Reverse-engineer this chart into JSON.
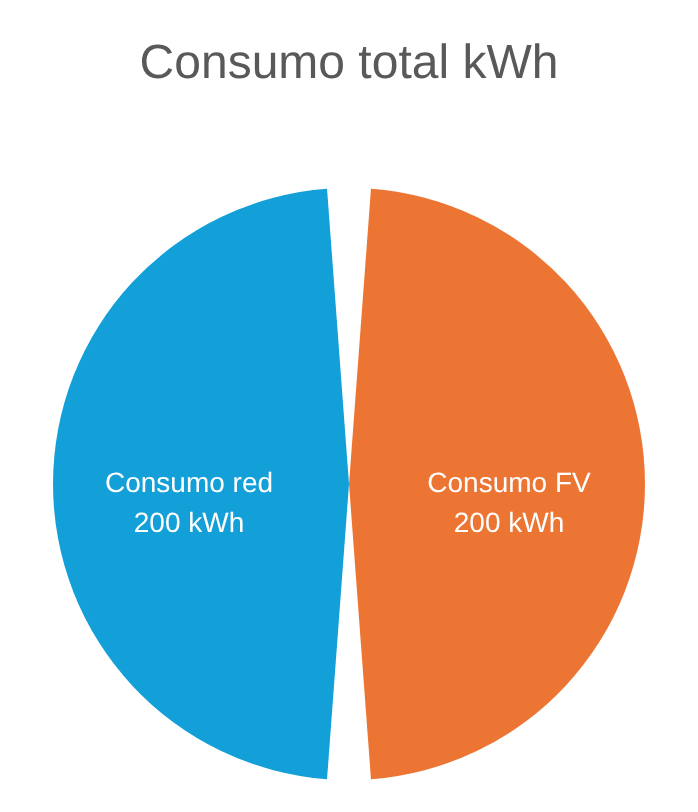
{
  "chart_data": {
    "type": "pie",
    "title": "Consumo total kWh",
    "categories": [
      "Consumo red",
      "Consumo FV"
    ],
    "values": [
      200,
      200
    ],
    "colors": [
      "#139fd8",
      "#ed7534"
    ],
    "value_labels": [
      "200 kWh",
      "200 kWh"
    ],
    "legend": false
  }
}
